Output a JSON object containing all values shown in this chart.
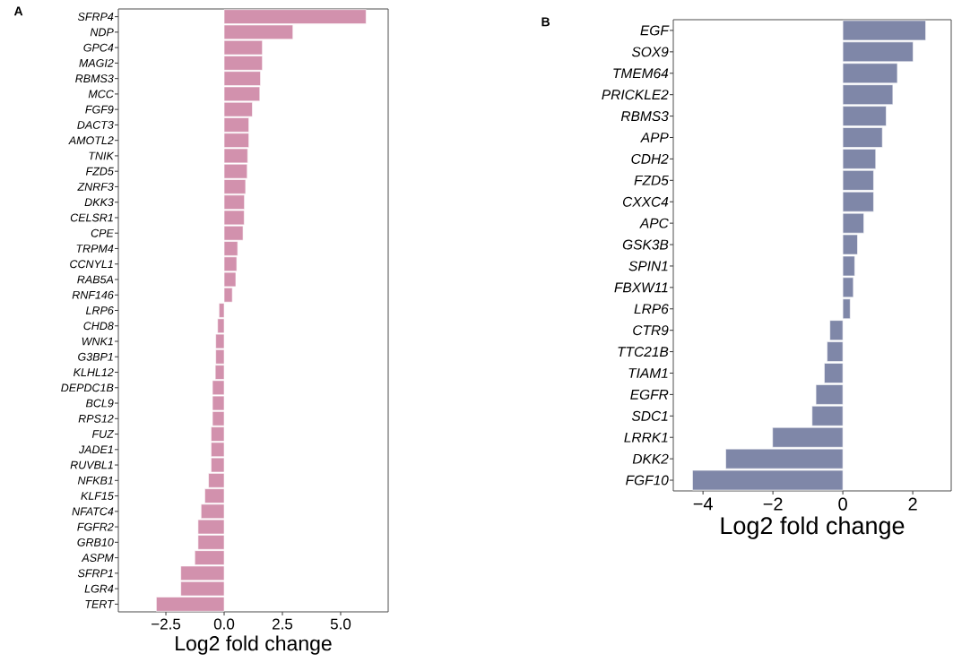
{
  "chart_data": [
    {
      "type": "bar",
      "orientation": "horizontal",
      "title": "A",
      "xlabel": "Log2 fold change",
      "color": "#d291ad",
      "categories": [
        "SFRP4",
        "NDP",
        "GPC4",
        "MAGI2",
        "RBMS3",
        "MCC",
        "FGF9",
        "DACT3",
        "AMOTL2",
        "TNIK",
        "FZD5",
        "ZNRF3",
        "DKK3",
        "CELSR1",
        "CPE",
        "TRPM4",
        "CCNYL1",
        "RAB5A",
        "RNF146",
        "LRP6",
        "CHD8",
        "WNK1",
        "G3BP1",
        "KLHL12",
        "DEPDC1B",
        "BCL9",
        "RPS12",
        "FUZ",
        "JADE1",
        "RUVBL1",
        "NFKB1",
        "KLF15",
        "NFATC4",
        "FGFR2",
        "GRB10",
        "ASPM",
        "SFRP1",
        "LGR4",
        "TERT"
      ],
      "values": [
        6.09,
        2.95,
        1.64,
        1.64,
        1.56,
        1.53,
        1.21,
        1.06,
        1.06,
        1.01,
        0.99,
        0.92,
        0.87,
        0.86,
        0.81,
        0.58,
        0.54,
        0.5,
        0.35,
        -0.22,
        -0.28,
        -0.36,
        -0.36,
        -0.38,
        -0.5,
        -0.5,
        -0.5,
        -0.56,
        -0.56,
        -0.56,
        -0.67,
        -0.83,
        -0.99,
        -1.12,
        -1.12,
        -1.26,
        -1.86,
        -1.86,
        -2.91
      ],
      "xlim": [
        -4.54,
        7.04
      ],
      "xticks": [
        {
          "value": -2.5,
          "label": "−2.5"
        },
        {
          "value": 0,
          "label": "0.0"
        },
        {
          "value": 2.5,
          "label": "2.5"
        },
        {
          "value": 5,
          "label": "5.0"
        }
      ]
    },
    {
      "type": "bar",
      "orientation": "horizontal",
      "title": "B",
      "xlabel": "Log2 fold change",
      "color": "#7f87a8",
      "categories": [
        "EGF",
        "SOX9",
        "TMEM64",
        "PRICKLE2",
        "RBMS3",
        "APP",
        "CDH2",
        "FZD5",
        "CXXC4",
        "APC",
        "GSK3B",
        "SPIN1",
        "FBXW11",
        "LRP6",
        "CTR9",
        "TTC21B",
        "TIAM1",
        "EGFR",
        "SDC1",
        "LRRK1",
        "DKK2",
        "FGF10"
      ],
      "values": [
        2.37,
        2.01,
        1.56,
        1.43,
        1.24,
        1.13,
        0.94,
        0.88,
        0.88,
        0.6,
        0.42,
        0.34,
        0.3,
        0.21,
        -0.37,
        -0.45,
        -0.53,
        -0.77,
        -0.88,
        -2.01,
        -3.35,
        -4.3
      ],
      "xlim": [
        -4.85,
        3.1
      ],
      "xticks": [
        {
          "value": -4,
          "label": "−4"
        },
        {
          "value": -2,
          "label": "−2"
        },
        {
          "value": 0,
          "label": "0"
        },
        {
          "value": 2,
          "label": "2"
        }
      ]
    }
  ]
}
